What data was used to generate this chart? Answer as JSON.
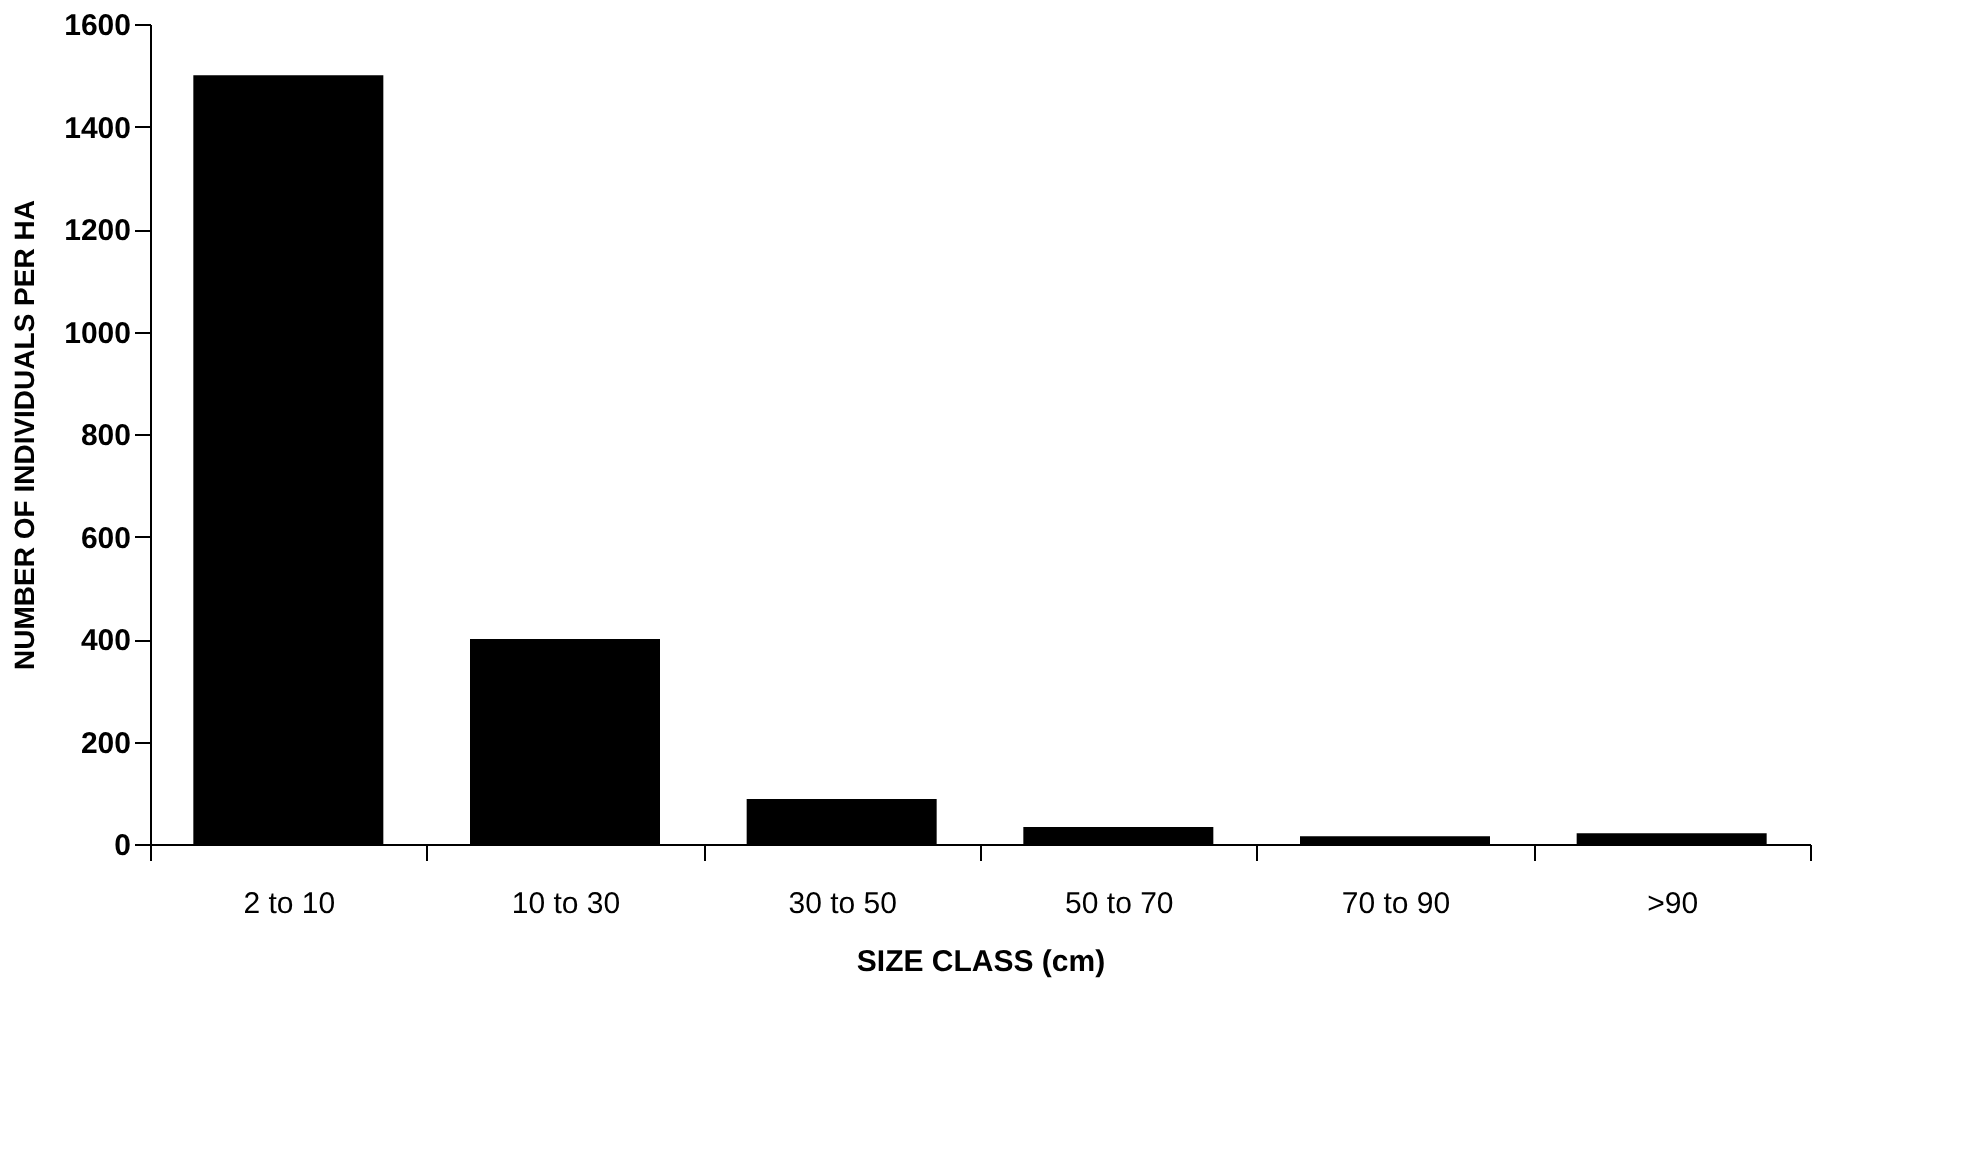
{
  "chart_data": {
    "type": "bar",
    "xlabel": "SIZE CLASS (cm)",
    "ylabel": "NUMBER OF INDIVIDUALS PER HA",
    "categories": [
      "2 to 10",
      "10 to 30",
      "30 to 50",
      "50 to 70",
      "70 to 90",
      ">90"
    ],
    "values": [
      1500,
      400,
      88,
      33,
      15,
      21
    ],
    "color": "#000000",
    "ylim": [
      0,
      1600
    ],
    "yticks": [
      0,
      200,
      400,
      600,
      800,
      1000,
      1200,
      1400,
      1600
    ],
    "grid": false
  }
}
